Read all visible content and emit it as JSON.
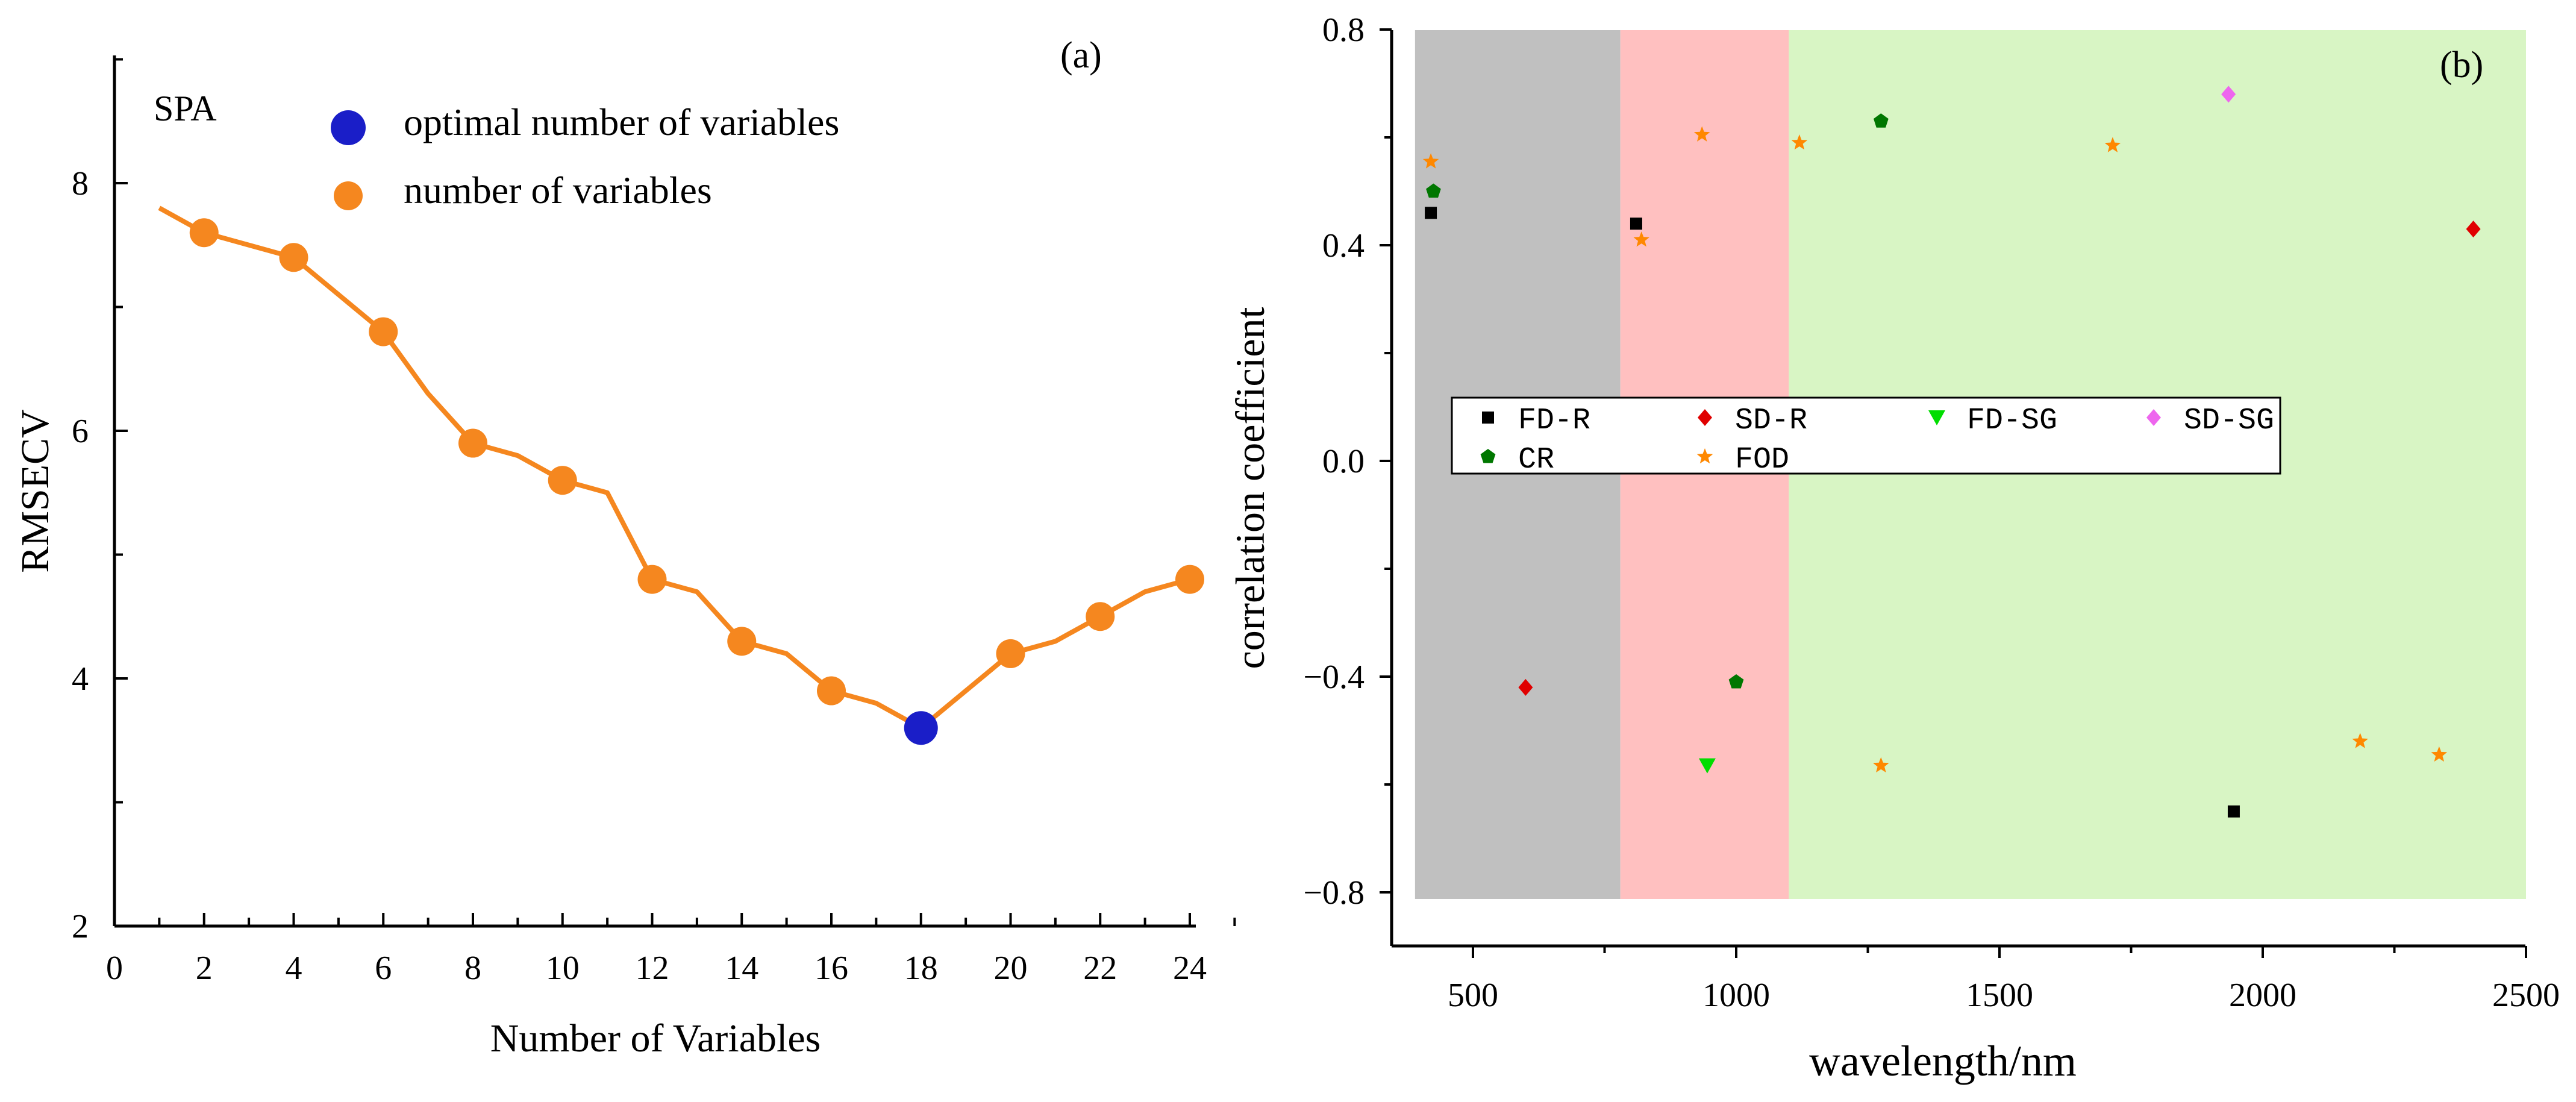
{
  "chart_data": [
    {
      "panel_label": "(a)",
      "type": "line",
      "method_label": "SPA",
      "xlabel": "Number of Variables",
      "ylabel": "RMSECV",
      "xlim": [
        0,
        25
      ],
      "ylim": [
        2,
        9
      ],
      "x_ticks": [
        "0",
        "2",
        "4",
        "6",
        "8",
        "10",
        "12",
        "14",
        "16",
        "18",
        "20",
        "22",
        "24"
      ],
      "y_ticks": [
        "2",
        "4",
        "6",
        "8"
      ],
      "line": {
        "x": [
          1,
          2,
          3,
          4,
          5,
          6,
          7,
          8,
          9,
          10,
          11,
          12,
          13,
          14,
          15,
          16,
          17,
          18,
          19,
          20,
          21,
          22,
          23,
          24
        ],
        "y": [
          7.8,
          7.6,
          7.5,
          7.4,
          7.1,
          6.8,
          6.3,
          5.9,
          5.8,
          5.6,
          5.5,
          4.8,
          4.7,
          4.3,
          4.2,
          3.9,
          3.8,
          3.6,
          3.9,
          4.2,
          4.3,
          4.5,
          4.7,
          4.8
        ]
      },
      "markers": {
        "name": "number of variables",
        "x": [
          2,
          4,
          6,
          8,
          10,
          12,
          14,
          16,
          20,
          22,
          24
        ],
        "y": [
          7.6,
          7.4,
          6.8,
          5.9,
          5.6,
          4.8,
          4.3,
          3.9,
          4.2,
          4.5,
          4.8
        ]
      },
      "optimal": {
        "name": "optimal number of variables",
        "x": 18,
        "y": 3.6
      },
      "legend": [
        "optimal number of variables",
        "number of variables"
      ],
      "legend_position": "top-center"
    },
    {
      "panel_label": "(b)",
      "type": "scatter",
      "xlabel": "wavelength/nm",
      "ylabel": "correlation coefficient",
      "xlim": [
        350,
        2500
      ],
      "ylim": [
        -0.9,
        0.8
      ],
      "x_ticks": [
        "500",
        "1000",
        "1500",
        "2000",
        "2500"
      ],
      "y_ticks": [
        "−0.8",
        "−0.4",
        "0.0",
        "0.4",
        "0.8"
      ],
      "regions": [
        {
          "from": 390,
          "to": 780,
          "color": "#c0c0c0"
        },
        {
          "from": 780,
          "to": 1100,
          "color": "#ffc0c0"
        },
        {
          "from": 1100,
          "to": 2500,
          "color": "#d8f5c4"
        }
      ],
      "series": [
        {
          "name": "FD-R",
          "marker": "square",
          "color": "#000000",
          "x": [
            420,
            810,
            1945
          ],
          "y": [
            0.46,
            0.44,
            -0.65
          ]
        },
        {
          "name": "SD-R",
          "marker": "diamond",
          "color": "#e00000",
          "x": [
            600,
            2400
          ],
          "y": [
            -0.42,
            0.43
          ]
        },
        {
          "name": "FD-SG",
          "marker": "triangle-down",
          "color": "#00dd00",
          "x": [
            945
          ],
          "y": [
            -0.565
          ]
        },
        {
          "name": "SD-SG",
          "marker": "diamond",
          "color": "#ee66ee",
          "x": [
            1935
          ],
          "y": [
            0.68
          ]
        },
        {
          "name": "CR",
          "marker": "pentagon",
          "color": "#007700",
          "x": [
            425,
            1000,
            1275
          ],
          "y": [
            0.5,
            -0.41,
            0.63
          ]
        },
        {
          "name": "FOD",
          "marker": "star",
          "color": "#ff8800",
          "x": [
            420,
            820,
            935,
            1120,
            1275,
            1715,
            2185,
            2335
          ],
          "y": [
            0.555,
            0.41,
            0.605,
            0.59,
            -0.565,
            0.585,
            -0.52,
            -0.545
          ]
        }
      ],
      "legend_position": "center-left, two rows"
    }
  ]
}
